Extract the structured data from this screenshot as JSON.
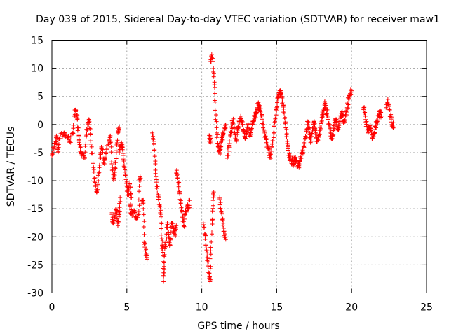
{
  "chart_data": {
    "type": "scatter",
    "title": "Day 039 of 2015, Sidereal Day-to-day VTEC variation (SDTVAR) for receiver maw1",
    "xlabel": "GPS time / hours",
    "ylabel": "SDTVAR / TECUs",
    "xlim": [
      0,
      25
    ],
    "ylim": [
      -30,
      15
    ],
    "xticks": [
      0,
      5,
      10,
      15,
      20,
      25
    ],
    "yticks": [
      -30,
      -25,
      -20,
      -15,
      -10,
      -5,
      0,
      5,
      10,
      15
    ],
    "xtick_labels": [
      "0",
      "5",
      "10",
      "15",
      "20",
      "25"
    ],
    "ytick_labels": [
      "-30",
      "-25",
      "-20",
      "-15",
      "-10",
      "-5",
      "0",
      "5",
      "10",
      "15"
    ],
    "grid": true,
    "marker": "+",
    "color": "#ff0000",
    "series": [
      {
        "name": "SDTVAR",
        "segments": [
          [
            [
              0.0,
              -5.5
            ],
            [
              0.15,
              -4.0
            ],
            [
              0.3,
              -2.0
            ],
            [
              0.4,
              -5.0
            ],
            [
              0.5,
              -2.5
            ]
          ],
          [
            [
              0.5,
              -2.5
            ],
            [
              0.8,
              -1.5
            ],
            [
              1.0,
              -2.0
            ],
            [
              1.2,
              -3.0
            ],
            [
              1.4,
              -1.5
            ],
            [
              1.5,
              1.5
            ],
            [
              1.6,
              2.5
            ],
            [
              1.7,
              1.0
            ],
            [
              1.8,
              -2.0
            ],
            [
              1.9,
              -4.0
            ],
            [
              2.0,
              -5.5
            ],
            [
              2.2,
              -6.0
            ],
            [
              2.3,
              -2.0
            ],
            [
              2.4,
              0.0
            ],
            [
              2.5,
              0.5
            ],
            [
              2.6,
              -3.5
            ],
            [
              2.8,
              -8.0
            ],
            [
              2.9,
              -11.0
            ],
            [
              3.0,
              -12.0
            ],
            [
              3.1,
              -10.0
            ],
            [
              3.2,
              -6.0
            ],
            [
              3.3,
              -4.0
            ],
            [
              3.5,
              -7.0
            ],
            [
              3.6,
              -5.0
            ],
            [
              3.8,
              -3.0
            ],
            [
              3.9,
              -2.0
            ],
            [
              4.0,
              -7.0
            ],
            [
              4.1,
              -9.5
            ],
            [
              4.2,
              -8.5
            ],
            [
              4.3,
              -5.0
            ],
            [
              4.4,
              -1.5
            ],
            [
              4.5,
              -0.5
            ]
          ],
          [
            [
              4.0,
              -16.0
            ],
            [
              4.1,
              -17.5
            ],
            [
              4.2,
              -16.5
            ],
            [
              4.3,
              -15.0
            ],
            [
              4.4,
              -18.0
            ],
            [
              4.5,
              -16.0
            ],
            [
              4.55,
              -13.0
            ]
          ],
          [
            [
              4.5,
              -5.0
            ],
            [
              4.6,
              -3.5
            ],
            [
              4.7,
              -4.0
            ],
            [
              4.8,
              -6.5
            ],
            [
              4.9,
              -9.0
            ],
            [
              5.0,
              -11.0
            ],
            [
              5.1,
              -12.5
            ],
            [
              5.2,
              -10.5
            ],
            [
              5.3,
              -13.0
            ],
            [
              5.2,
              -14.5
            ],
            [
              5.3,
              -16.0
            ],
            [
              5.5,
              -15.5
            ],
            [
              5.6,
              -16.5
            ],
            [
              5.8,
              -16.0
            ],
            [
              5.85,
              -10.0
            ],
            [
              5.9,
              -9.5
            ]
          ],
          [
            [
              6.0,
              -13.5
            ],
            [
              6.1,
              -14.0
            ],
            [
              6.15,
              -21.0
            ],
            [
              6.25,
              -22.5
            ],
            [
              6.35,
              -24.0
            ]
          ],
          [
            [
              6.7,
              -1.5
            ],
            [
              6.8,
              -3.0
            ],
            [
              6.9,
              -7.0
            ],
            [
              7.0,
              -11.0
            ],
            [
              7.1,
              -12.5
            ],
            [
              7.2,
              -14.5
            ],
            [
              7.3,
              -17.5
            ],
            [
              7.35,
              -21.5
            ],
            [
              7.4,
              -22.5
            ],
            [
              7.45,
              -28.0
            ],
            [
              7.5,
              -23.5
            ],
            [
              7.6,
              -21.0
            ],
            [
              7.7,
              -17.5
            ],
            [
              7.8,
              -20.0
            ],
            [
              7.9,
              -21.5
            ],
            [
              8.0,
              -17.5
            ],
            [
              8.1,
              -18.5
            ],
            [
              8.2,
              -19.5
            ],
            [
              8.3,
              -18.0
            ]
          ],
          [
            [
              8.3,
              -8.5
            ],
            [
              8.4,
              -9.5
            ],
            [
              8.5,
              -12.0
            ],
            [
              8.6,
              -14.0
            ],
            [
              8.7,
              -16.5
            ],
            [
              8.8,
              -18.0
            ],
            [
              8.9,
              -16.0
            ],
            [
              9.0,
              -14.5
            ],
            [
              9.1,
              -15.0
            ],
            [
              9.2,
              -13.5
            ]
          ],
          [
            [
              10.1,
              -17.5
            ],
            [
              10.2,
              -19.5
            ],
            [
              10.3,
              -22.0
            ],
            [
              10.4,
              -24.5
            ],
            [
              10.5,
              -26.5
            ],
            [
              10.55,
              -28.0
            ],
            [
              10.6,
              -22.5
            ],
            [
              10.7,
              -17.0
            ],
            [
              10.75,
              -13.5
            ],
            [
              10.8,
              -12.0
            ]
          ],
          [
            [
              10.5,
              -2.5
            ],
            [
              10.55,
              -2.0
            ],
            [
              10.6,
              -3.0
            ]
          ],
          [
            [
              10.6,
              11.5
            ],
            [
              10.7,
              12.0
            ],
            [
              10.8,
              8.5
            ],
            [
              10.9,
              4.0
            ],
            [
              11.0,
              -1.5
            ],
            [
              11.1,
              -4.0
            ],
            [
              11.2,
              -5.0
            ],
            [
              11.3,
              -3.0
            ],
            [
              11.4,
              -2.0
            ],
            [
              11.5,
              -1.0
            ],
            [
              11.6,
              -0.5
            ]
          ],
          [
            [
              11.2,
              -13.0
            ],
            [
              11.3,
              -15.5
            ],
            [
              11.4,
              -17.0
            ],
            [
              11.5,
              -19.0
            ],
            [
              11.6,
              -20.5
            ]
          ],
          [
            [
              11.7,
              -6.0
            ],
            [
              11.8,
              -4.0
            ],
            [
              11.9,
              -2.0
            ],
            [
              12.0,
              -0.5
            ],
            [
              12.1,
              1.0
            ],
            [
              12.2,
              -1.5
            ],
            [
              12.3,
              -3.0
            ],
            [
              12.4,
              -1.0
            ],
            [
              12.5,
              0.5
            ],
            [
              12.6,
              1.5
            ],
            [
              12.7,
              0.5
            ],
            [
              12.8,
              -1.0
            ],
            [
              12.9,
              -2.5
            ],
            [
              13.0,
              -1.5
            ],
            [
              13.1,
              0.0
            ],
            [
              13.2,
              -2.0
            ],
            [
              13.3,
              -1.0
            ],
            [
              13.4,
              0.5
            ],
            [
              13.5,
              1.0
            ],
            [
              13.6,
              2.0
            ],
            [
              13.7,
              3.0
            ],
            [
              13.8,
              3.5
            ],
            [
              13.9,
              2.5
            ],
            [
              14.0,
              1.5
            ],
            [
              14.1,
              0.0
            ],
            [
              14.2,
              -1.5
            ],
            [
              14.3,
              -2.5
            ],
            [
              14.4,
              -4.0
            ],
            [
              14.5,
              -5.0
            ],
            [
              14.6,
              -6.0
            ],
            [
              14.7,
              -3.5
            ],
            [
              14.8,
              -1.5
            ],
            [
              14.9,
              1.0
            ],
            [
              15.0,
              3.0
            ],
            [
              15.1,
              5.0
            ],
            [
              15.2,
              6.0
            ],
            [
              15.3,
              5.5
            ],
            [
              15.4,
              4.0
            ],
            [
              15.5,
              2.0
            ],
            [
              15.6,
              -0.5
            ],
            [
              15.7,
              -3.0
            ],
            [
              15.8,
              -5.5
            ],
            [
              15.9,
              -6.0
            ],
            [
              16.0,
              -6.5
            ],
            [
              16.1,
              -7.0
            ],
            [
              16.2,
              -6.0
            ],
            [
              16.3,
              -6.5
            ],
            [
              16.4,
              -7.5
            ],
            [
              16.5,
              -7.0
            ],
            [
              16.6,
              -6.0
            ],
            [
              16.7,
              -5.0
            ],
            [
              16.8,
              -4.0
            ],
            [
              16.9,
              -2.5
            ],
            [
              17.0,
              -1.0
            ],
            [
              17.1,
              0.5
            ],
            [
              17.2,
              -1.5
            ],
            [
              17.3,
              -3.0
            ],
            [
              17.4,
              -1.0
            ],
            [
              17.5,
              0.5
            ],
            [
              17.6,
              -1.5
            ],
            [
              17.7,
              -3.0
            ],
            [
              17.8,
              -2.0
            ],
            [
              17.9,
              -1.0
            ],
            [
              18.0,
              0.5
            ],
            [
              18.1,
              2.0
            ],
            [
              18.2,
              4.0
            ],
            [
              18.3,
              3.0
            ],
            [
              18.4,
              1.5
            ],
            [
              18.5,
              0.0
            ],
            [
              18.6,
              -1.5
            ],
            [
              18.7,
              -2.5
            ],
            [
              18.8,
              -1.0
            ],
            [
              18.9,
              1.0
            ],
            [
              19.0,
              0.0
            ],
            [
              19.1,
              -1.0
            ],
            [
              19.2,
              0.5
            ],
            [
              19.3,
              2.0
            ],
            [
              19.4,
              1.5
            ],
            [
              19.5,
              0.5
            ],
            [
              19.6,
              1.5
            ],
            [
              19.7,
              3.0
            ],
            [
              19.8,
              4.5
            ],
            [
              19.9,
              5.5
            ],
            [
              20.0,
              6.0
            ]
          ],
          [
            [
              20.8,
              3.0
            ],
            [
              20.9,
              1.5
            ],
            [
              21.0,
              0.0
            ],
            [
              21.1,
              -1.5
            ],
            [
              21.2,
              -0.5
            ],
            [
              21.3,
              -1.0
            ],
            [
              21.4,
              -2.5
            ],
            [
              21.5,
              -1.5
            ],
            [
              21.6,
              -0.5
            ],
            [
              21.7,
              0.5
            ],
            [
              21.8,
              1.5
            ],
            [
              21.9,
              2.5
            ],
            [
              22.0,
              1.5
            ]
          ],
          [
            [
              22.3,
              3.0
            ],
            [
              22.4,
              4.0
            ],
            [
              22.5,
              3.5
            ],
            [
              22.6,
              1.5
            ],
            [
              22.7,
              0.0
            ],
            [
              22.8,
              -0.5
            ]
          ]
        ]
      }
    ]
  }
}
